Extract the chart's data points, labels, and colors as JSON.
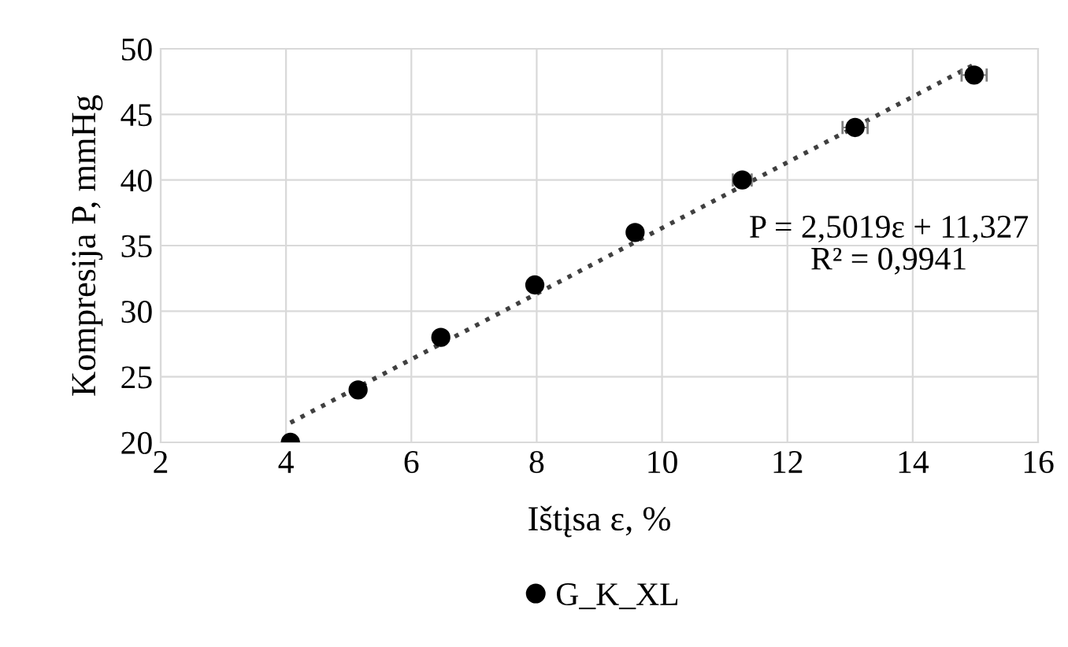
{
  "chart_data": {
    "type": "scatter",
    "xlabel": "Ištįsa ε, %",
    "ylabel": "Kompresija P, mmHg",
    "xlim": [
      2,
      16
    ],
    "xticks": [
      2,
      4,
      6,
      8,
      10,
      12,
      14,
      16
    ],
    "ylim": [
      20,
      50
    ],
    "yticks": [
      20,
      25,
      30,
      35,
      40,
      45,
      50
    ],
    "grid": true,
    "legend": "bottom",
    "marker": "circle",
    "series": [
      {
        "name": "G_K_XL",
        "color": "#000000",
        "x": [
          4.07,
          5.15,
          6.47,
          7.97,
          9.57,
          11.28,
          13.08,
          14.98
        ],
        "values": [
          20,
          24,
          28,
          32,
          36,
          40,
          44,
          48
        ],
        "xerrors": [
          null,
          null,
          null,
          null,
          null,
          0.15,
          0.2,
          0.2
        ]
      },
      {
        "type": "line",
        "color": "#404040",
        "line_style": "dotted",
        "marker": "none",
        "x": [
          4.07,
          14.98
        ],
        "values": [
          21.5,
          48.8
        ]
      }
    ],
    "annotations": [
      "P = 2,5019ε + 11,327\nR² = 0,9941"
    ]
  }
}
